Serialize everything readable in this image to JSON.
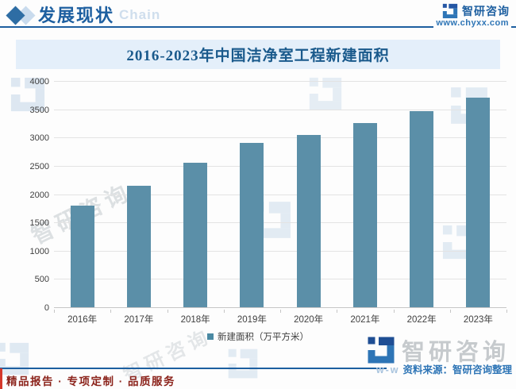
{
  "header": {
    "title": "发展现状",
    "chain_watermark": "Chain",
    "brand_name": "智研咨询",
    "brand_url": "www.chyxx.com"
  },
  "banner": {
    "title": "2016-2023年中国洁净室工程新建面积"
  },
  "chart_data": {
    "type": "bar",
    "title": "2016-2023年中国洁净室工程新建面积",
    "categories": [
      "2016年",
      "2017年",
      "2018年",
      "2019年",
      "2020年",
      "2021年",
      "2022年",
      "2023年"
    ],
    "series": [
      {
        "name": "新建面积（万平方米）",
        "values": [
          1790,
          2150,
          2550,
          2900,
          3050,
          3260,
          3470,
          3700
        ]
      }
    ],
    "xlabel": "",
    "ylabel": "",
    "ylim": [
      0,
      4000
    ],
    "ytick_step": 500,
    "grid": true,
    "legend_position": "bottom",
    "bar_color": "#5b8fa8"
  },
  "watermarks": {
    "diagonal_text": "智研咨询",
    "big_brand": "智研咨询",
    "url_fragment": "w-w"
  },
  "footer": {
    "source": "资料来源：智研咨询整理",
    "tagline": "精品报告 · 专项定制 · 品质服务"
  },
  "colors": {
    "accent_blue": "#1d5fa0",
    "link_blue": "#2e75b6",
    "bar_teal": "#5b8fa8",
    "banner_bg": "#e4effa",
    "tagline_red": "#8c241c",
    "red_bar": "#d5382b"
  }
}
